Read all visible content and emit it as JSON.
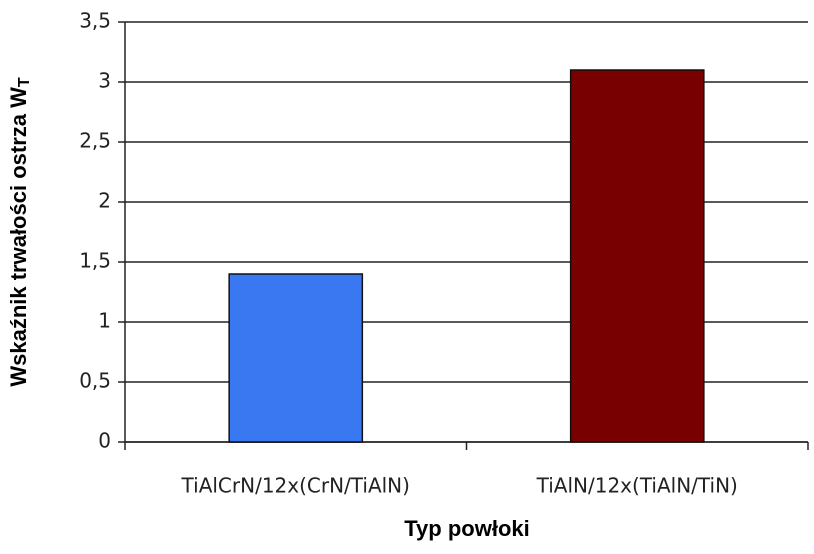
{
  "chart_data": {
    "type": "bar",
    "y_label": "Wskaźnik trwałości ostrza W",
    "y_label_subscript": "T",
    "x_label": "Typ powłoki",
    "categories": [
      "TiAlCrN/12x(CrN/TiAlN)",
      "TiAlN/12x(TiAlN/TiN)"
    ],
    "values": [
      1.4,
      3.1
    ],
    "colors": [
      "#3a78f2",
      "#780000"
    ],
    "ylim": [
      0,
      3.5
    ],
    "yticks": [
      0,
      {
        "value": 0.5,
        "label": "0,5"
      },
      1,
      {
        "value": 1.5,
        "label": "1,5"
      },
      2,
      {
        "value": 2.5,
        "label": "2,5"
      },
      3,
      {
        "value": 3.5,
        "label": "3,5"
      }
    ],
    "grid": true
  }
}
